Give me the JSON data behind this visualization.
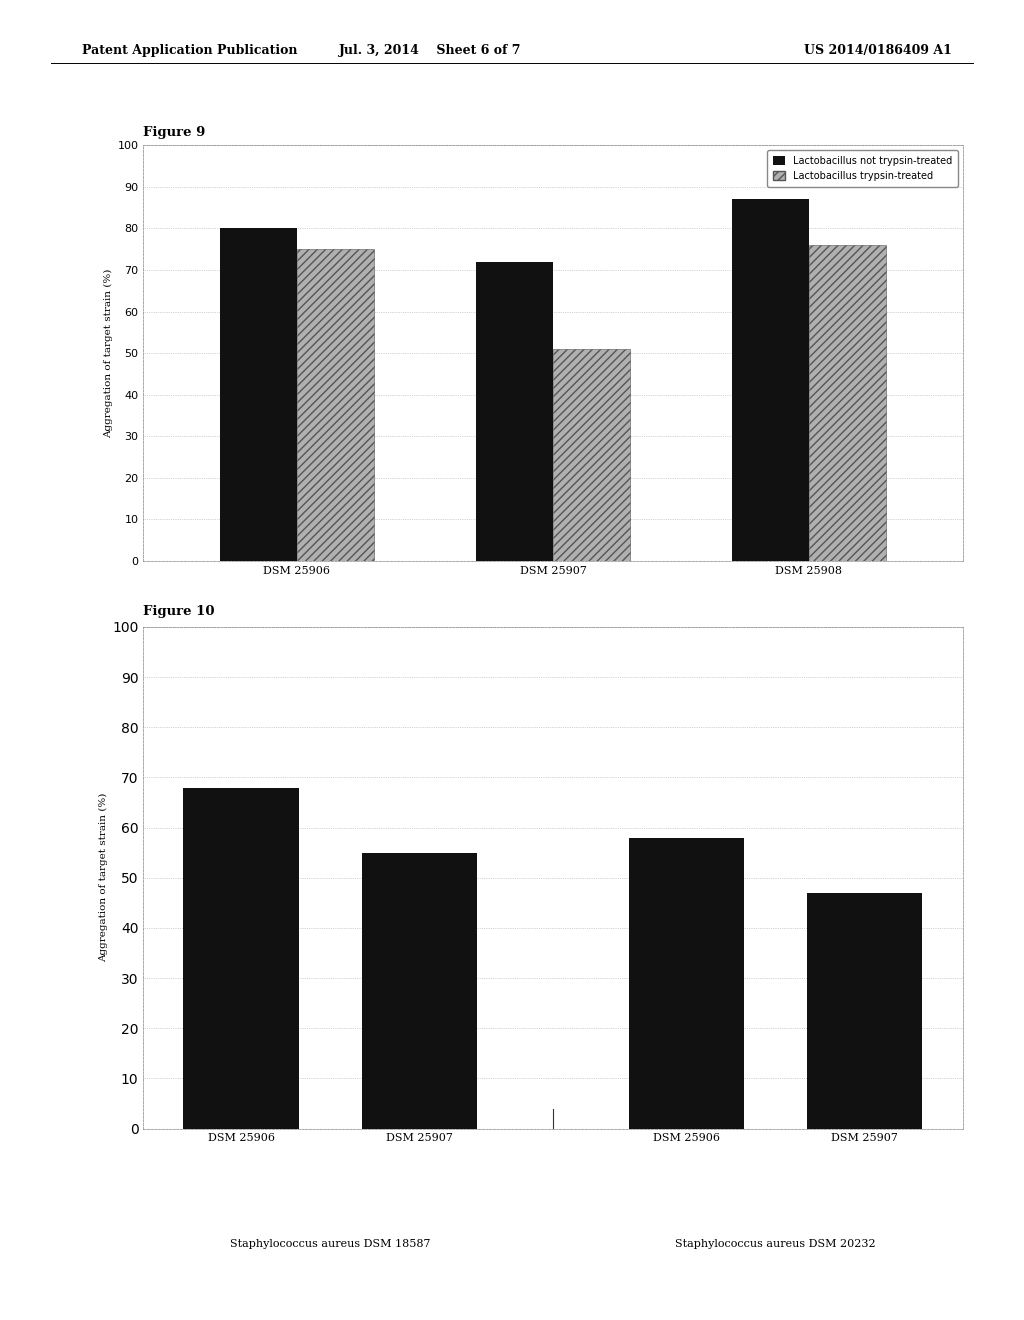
{
  "fig9": {
    "title": "Figure 9",
    "categories": [
      "DSM 25906",
      "DSM 25907",
      "DSM 25908"
    ],
    "series1_label": "Lactobacillus not trypsin-treated",
    "series2_label": "Lactobacillus trypsin-treated",
    "series1_values": [
      80,
      72,
      87
    ],
    "series2_values": [
      75,
      51,
      76
    ],
    "series1_color": "#111111",
    "series2_color": "#b0b0b0",
    "ylabel": "Aggregation of target strain (%)",
    "ylim": [
      0,
      100
    ],
    "yticks": [
      0,
      10,
      20,
      30,
      40,
      50,
      60,
      70,
      80,
      90,
      100
    ]
  },
  "fig10": {
    "title": "Figure 10",
    "bar_labels": [
      "DSM 25906",
      "DSM 25907",
      "DSM 25906",
      "DSM 25907"
    ],
    "group_labels": [
      "Staphylococcus aureus DSM 18587",
      "Staphylococcus aureus DSM 20232"
    ],
    "values": [
      68,
      55,
      58,
      47
    ],
    "bar_color": "#111111",
    "ylabel": "Aggregation of target strain (%)",
    "ylim": [
      0,
      100
    ],
    "yticks": [
      0,
      10,
      20,
      30,
      40,
      50,
      60,
      70,
      80,
      90,
      100
    ]
  },
  "header_left": "Patent Application Publication",
  "header_mid": "Jul. 3, 2014    Sheet 6 of 7",
  "header_right": "US 2014/0186409 A1",
  "bg_color": "#ffffff",
  "chart_bg": "#ffffff",
  "grid_color": "#aaaaaa",
  "border_color": "#888888"
}
